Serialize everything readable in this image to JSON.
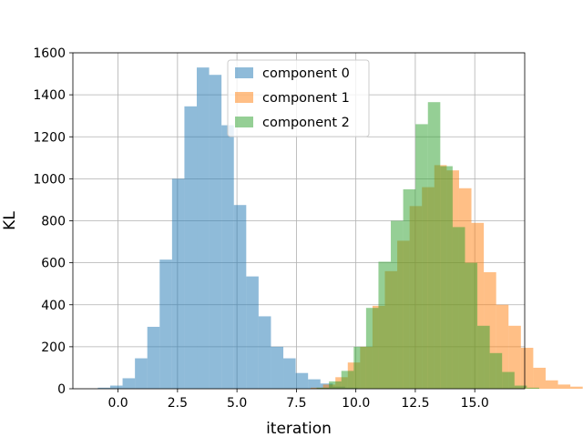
{
  "chart_data": {
    "type": "bar",
    "subtype": "overlaid-histogram",
    "title": "",
    "xlabel": "iteration",
    "ylabel": "KL",
    "xlim": [
      -1.9,
      17.1
    ],
    "ylim": [
      0,
      1600
    ],
    "xticks": [
      0.0,
      2.5,
      5.0,
      7.5,
      10.0,
      12.5,
      15.0
    ],
    "xtick_labels": [
      "0.0",
      "2.5",
      "5.0",
      "7.5",
      "10.0",
      "12.5",
      "15.0"
    ],
    "yticks": [
      0,
      200,
      400,
      600,
      800,
      1000,
      1200,
      1400,
      1600
    ],
    "ytick_labels": [
      "0",
      "200",
      "400",
      "600",
      "800",
      "1000",
      "1200",
      "1400",
      "1600"
    ],
    "grid": true,
    "legend_position": "top-center",
    "series": [
      {
        "name": "component 0",
        "color": "#1f77b4",
        "opacity": 0.5,
        "bin_start": -0.85,
        "bin_width": 0.52,
        "values": [
          5,
          15,
          50,
          145,
          295,
          615,
          1000,
          1345,
          1530,
          1495,
          1255,
          875,
          535,
          345,
          200,
          145,
          75,
          45,
          25,
          10,
          5
        ]
      },
      {
        "name": "component 1",
        "color": "#ff7f0e",
        "opacity": 0.5,
        "bin_start": 8.1,
        "bin_width": 0.52,
        "values": [
          5,
          20,
          55,
          125,
          200,
          395,
          560,
          705,
          870,
          960,
          1065,
          1040,
          955,
          790,
          555,
          400,
          300,
          195,
          100,
          40,
          20,
          10
        ]
      },
      {
        "name": "component 2",
        "color": "#2ca02c",
        "opacity": 0.5,
        "bin_start": 8.35,
        "bin_width": 0.52,
        "values": [
          5,
          35,
          85,
          200,
          385,
          605,
          800,
          950,
          1260,
          1365,
          1060,
          770,
          600,
          300,
          170,
          80,
          15,
          5
        ]
      }
    ]
  }
}
